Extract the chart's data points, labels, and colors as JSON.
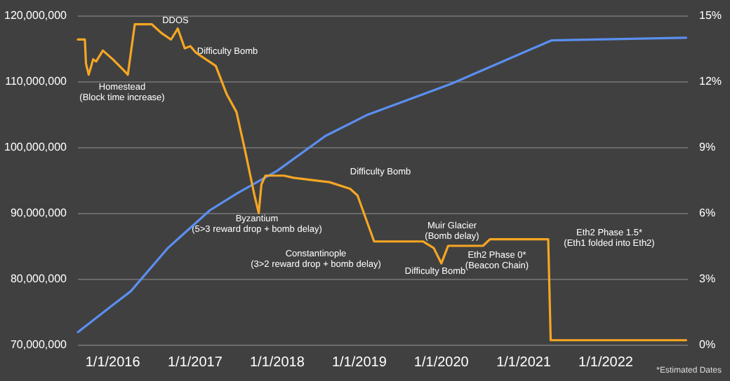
{
  "chart_data": {
    "type": "line",
    "grid": "y",
    "xlim": [
      "2015-07-30",
      "2023-01-01"
    ],
    "xticks": [
      {
        "value": "2016-01-01",
        "label": "1/1/2016"
      },
      {
        "value": "2017-01-01",
        "label": "1/1/2017"
      },
      {
        "value": "2018-01-01",
        "label": "1/1/2018"
      },
      {
        "value": "2019-01-01",
        "label": "1/1/2019"
      },
      {
        "value": "2020-01-01",
        "label": "1/1/2020"
      },
      {
        "value": "2021-01-01",
        "label": "1/1/2021"
      },
      {
        "value": "2022-01-01",
        "label": "1/1/2022"
      }
    ],
    "ylim": [
      70000000,
      120000000
    ],
    "yticks": [
      {
        "value": 70000000,
        "label": "70,000,000"
      },
      {
        "value": 80000000,
        "label": "80,000,000"
      },
      {
        "value": 90000000,
        "label": "90,000,000"
      },
      {
        "value": 100000000,
        "label": "100,000,000"
      },
      {
        "value": 110000000,
        "label": "110,000,000"
      },
      {
        "value": 120000000,
        "label": "120,000,000"
      }
    ],
    "y2lim": [
      0,
      15
    ],
    "y2ticks": [
      {
        "value": 0,
        "label": "0%"
      },
      {
        "value": 3,
        "label": "3%"
      },
      {
        "value": 6,
        "label": "6%"
      },
      {
        "value": 9,
        "label": "9%"
      },
      {
        "value": 12,
        "label": "12%"
      },
      {
        "value": 15,
        "label": "15%"
      }
    ],
    "series": [
      {
        "color": "#5b8ff0",
        "x": [
          "2015-07-30",
          "2016-01-01",
          "2016-03-21",
          "2016-09-03",
          "2017-03-08",
          "2017-07-08",
          "2018-01-01",
          "2018-08-04",
          "2019-02-06",
          "2020-02-13",
          "2021-05-04",
          "2022-12-24"
        ],
        "values": [
          71900000,
          76000000,
          78100000,
          84700000,
          90400000,
          93000000,
          96400000,
          101700000,
          104900000,
          109600000,
          116200000,
          116600000
        ]
      },
      {
        "color": "#f6a623",
        "axis": "y2",
        "x": [
          "2015-07-30",
          "2015-08-30",
          "2015-09-04",
          "2015-09-16",
          "2015-10-06",
          "2015-10-19",
          "2015-11-18",
          "2016-01-01",
          "2016-02-19",
          "2016-03-08",
          "2016-04-08",
          "2016-05-03",
          "2016-06-22",
          "2016-08-04",
          "2016-09-16",
          "2016-10-16",
          "2016-11-16",
          "2016-12-11",
          "2017-01-05",
          "2017-04-03",
          "2017-05-22",
          "2017-07-04",
          "2017-08-10",
          "2017-09-22",
          "2017-10-11",
          "2017-10-23",
          "2017-11-10",
          "2018-01-31",
          "2018-03-15",
          "2018-08-22",
          "2018-11-21",
          "2018-12-24",
          "2019-03-08",
          "2019-10-11",
          "2019-11-28",
          "2020-01-01",
          "2020-01-31",
          "2020-07-04",
          "2020-08-04",
          "2021-04-20",
          "2021-05-01",
          "2022-12-24"
        ],
        "values": [
          13.9,
          13.9,
          12.8,
          12.3,
          13.0,
          12.9,
          13.4,
          13.0,
          12.5,
          12.3,
          14.6,
          14.6,
          14.6,
          14.2,
          13.9,
          14.4,
          13.5,
          13.6,
          13.3,
          12.7,
          11.4,
          10.6,
          8.9,
          6.8,
          6.0,
          7.3,
          7.7,
          7.7,
          7.6,
          7.4,
          7.1,
          6.8,
          4.7,
          4.7,
          4.4,
          3.7,
          4.5,
          4.5,
          4.8,
          4.8,
          0.2,
          0.2
        ]
      }
    ],
    "annotations": [
      "Homestead\n(Block time increase)",
      "DDOS",
      "Difficulty Bomb",
      "Byzantium\n(5>3 reward drop + bomb delay)",
      "Difficulty Bomb",
      "Constantinople\n(3>2 reward drop + bomb delay)",
      "Muir Glacier\n(Bomb delay)",
      "Difficulty Bomb",
      "Eth2 Phase 0*\n(Beacon Chain)",
      "Eth2 Phase 1.5*\n(Eth1 folded into Eth2)",
      "*Estimated Dates"
    ]
  }
}
